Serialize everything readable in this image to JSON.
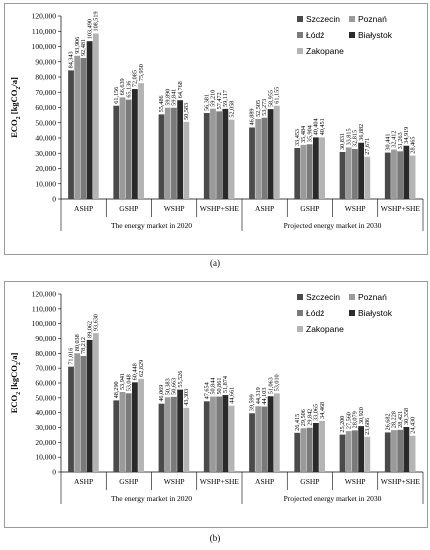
{
  "legend": {
    "items": [
      {
        "label": "Szczecin",
        "color": "#4a4a4a"
      },
      {
        "label": "Poznań",
        "color": "#9a9a9a"
      },
      {
        "label": "Łódź",
        "color": "#7a7a7a"
      },
      {
        "label": "Białystok",
        "color": "#2a2a2a"
      },
      {
        "label": "Zakopane",
        "color": "#b4b4b4"
      }
    ]
  },
  "captions": {
    "a": "(a)",
    "b": "(b)"
  },
  "chart_data": [
    {
      "type": "bar",
      "title": "",
      "ylabel": "ECO₂ [kgCO₂/a]",
      "ylabel_main": "ECO",
      "ylabel_sub": "2",
      "ylabel_rest": " [kgCO",
      "ylabel_sub2": "2",
      "ylabel_end": "/a]",
      "ylim": [
        0,
        120000
      ],
      "yticks": [
        "0",
        "10,000",
        "20,000",
        "30,000",
        "40,000",
        "50,000",
        "60,000",
        "70,000",
        "80,000",
        "90,000",
        "100,000",
        "110,000",
        "120,000"
      ],
      "categories": [
        "ASHP",
        "GSHP",
        "WSHP",
        "WSHP+SHE",
        "ASHP",
        "GSHP",
        "WSHP",
        "WSHP+SHE"
      ],
      "groups": [
        "The energy market in 2020",
        "Projected energy market in 2030"
      ],
      "series": [
        {
          "name": "Szczecin",
          "values": [
            84343,
            61156,
            55486,
            56381,
            46889,
            33453,
            30831,
            30441
          ]
        },
        {
          "name": "Poznań",
          "values": [
            93906,
            66639,
            59890,
            59210,
            52505,
            35484,
            33815,
            32412
          ]
        },
        {
          "name": "Łódź",
          "values": [
            92481,
            65136,
            59841,
            57472,
            53273,
            35904,
            32815,
            31263
          ]
        },
        {
          "name": "Białystok",
          "values": [
            103490,
            72085,
            64768,
            59117,
            58955,
            40404,
            36882,
            34919
          ]
        },
        {
          "name": "Zakopane",
          "values": [
            108519,
            75950,
            50583,
            52058,
            61155,
            40451,
            27671,
            28465
          ]
        }
      ],
      "labels": [
        [
          "84,343",
          "61,156",
          "55,486",
          "56,381",
          "46,889",
          "33,453",
          "30,831",
          "30,441"
        ],
        [
          "93,906",
          "66,639",
          "59,890",
          "59,210",
          "52,505",
          "35,484",
          "33,815",
          "32,412"
        ],
        [
          "92,481",
          "65,136",
          "59,841",
          "57,472",
          "53,273",
          "35,904",
          "32,815",
          "31,263"
        ],
        [
          "103,490",
          "72,085",
          "64,768",
          "59,117",
          "58,955",
          "40,404",
          "36,882",
          "34,919"
        ],
        [
          "108,519",
          "75,950",
          "50,583",
          "52,058",
          "61,155",
          "40,451",
          "27,671",
          "28,465"
        ]
      ]
    },
    {
      "type": "bar",
      "title": "",
      "ylabel": "ECO₂ [kgCO₂/a]",
      "ylabel_main": "ECO",
      "ylabel_sub": "2",
      "ylabel_rest": " [kgCO",
      "ylabel_sub2": "2",
      "ylabel_end": "/a]",
      "ylim": [
        0,
        120000
      ],
      "yticks": [
        "0",
        "10,000",
        "20,000",
        "30,000",
        "40,000",
        "50,000",
        "60,000",
        "70,000",
        "80,000",
        "90,000",
        "100,000",
        "110,000",
        "120,000"
      ],
      "categories": [
        "ASHP",
        "GSHP",
        "WSHP",
        "WSHP+SHE",
        "ASHP",
        "GSHP",
        "WSHP",
        "WSHP+SHE"
      ],
      "groups": [
        "The energy market in 2020",
        "Projected energy market in 2030"
      ],
      "series": [
        {
          "name": "Szczecin",
          "values": [
            71016,
            48290,
            46069,
            47654,
            39599,
            26415,
            25200,
            26682
          ]
        },
        {
          "name": "Poznań",
          "values": [
            80038,
            53941,
            50383,
            50844,
            44319,
            29506,
            27560,
            28228
          ]
        },
        {
          "name": "Łódź",
          "values": [
            78212,
            53048,
            50663,
            50861,
            44103,
            29842,
            28079,
            28421
          ]
        },
        {
          "name": "Białystok",
          "values": [
            89062,
            60448,
            55526,
            51874,
            51063,
            33065,
            30920,
            30358
          ]
        },
        {
          "name": "Zakopane",
          "values": [
            93630,
            62829,
            43303,
            44661,
            53010,
            34468,
            23686,
            24430
          ]
        }
      ],
      "labels": [
        [
          "71,016",
          "48,290",
          "46,069",
          "47,654",
          "39,599",
          "26,415",
          "25,200",
          "26,682"
        ],
        [
          "80,038",
          "53,941",
          "50,383",
          "50,844",
          "44,319",
          "29,506",
          "27,560",
          "28,228"
        ],
        [
          "78,212",
          "53,048",
          "50,663",
          "50,861",
          "44,103",
          "29,842",
          "28,079",
          "28,421"
        ],
        [
          "89,062",
          "60,448",
          "55,526",
          "51,874",
          "51,063",
          "33,065",
          "30,920",
          "30,358"
        ],
        [
          "93,630",
          "62,829",
          "43,303",
          "44,661",
          "53,010",
          "34,468",
          "23,686",
          "24,430"
        ]
      ]
    }
  ]
}
